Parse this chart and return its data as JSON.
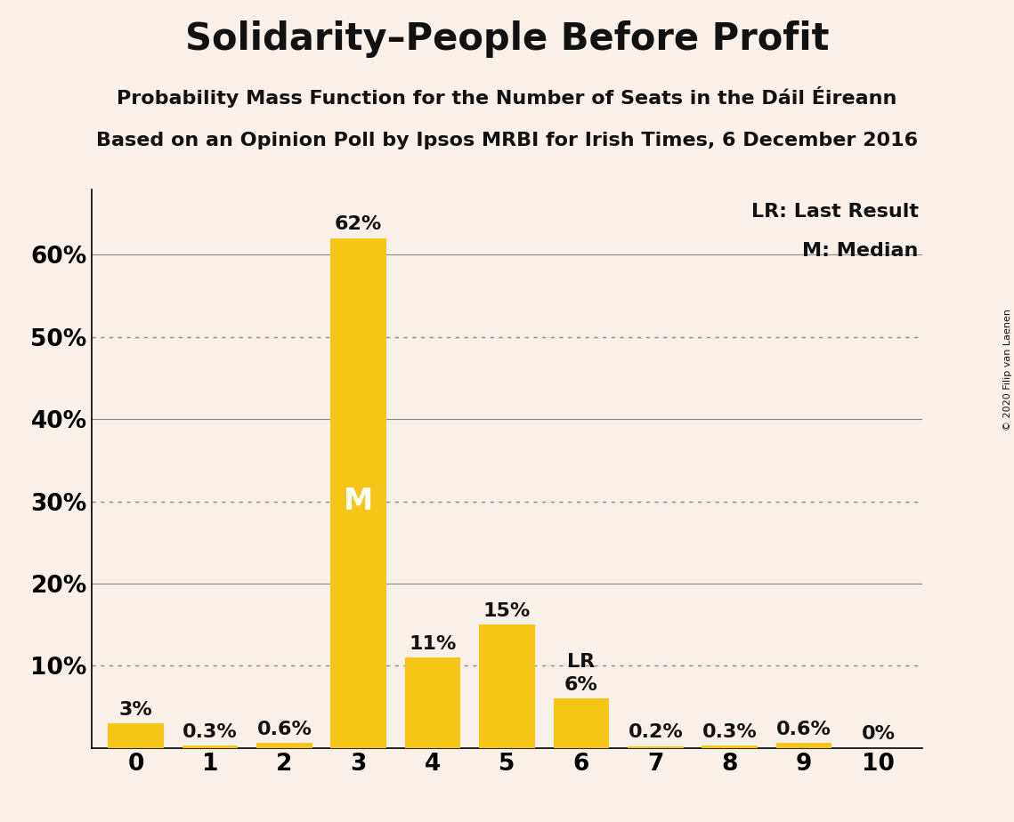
{
  "title": "Solidarity–People Before Profit",
  "subtitle1": "Probability Mass Function for the Number of Seats in the Dáil Éireann",
  "subtitle2": "Based on an Opinion Poll by Ipsos MRBI for Irish Times, 6 December 2016",
  "copyright": "© 2020 Filip van Laenen",
  "categories": [
    0,
    1,
    2,
    3,
    4,
    5,
    6,
    7,
    8,
    9,
    10
  ],
  "values": [
    3.0,
    0.3,
    0.6,
    62.0,
    11.0,
    15.0,
    6.0,
    0.2,
    0.3,
    0.6,
    0.0
  ],
  "labels": [
    "3%",
    "0.3%",
    "0.6%",
    "62%",
    "11%",
    "15%",
    "6%",
    "0.2%",
    "0.3%",
    "0.6%",
    "0%"
  ],
  "bar_color": "#F5C518",
  "background_color": "#FAF0EA",
  "text_color": "#111111",
  "median_bar": 3,
  "last_result_bar": 6,
  "ylim": [
    0,
    68
  ],
  "yticks": [
    0,
    10,
    20,
    30,
    40,
    50,
    60
  ],
  "ytick_labels": [
    "",
    "10%",
    "20%",
    "30%",
    "40%",
    "50%",
    "60%"
  ],
  "dotted_gridlines": [
    10,
    30,
    50
  ],
  "solid_gridlines": [
    20,
    40,
    60
  ],
  "legend_lr": "LR: Last Result",
  "legend_m": "M: Median",
  "title_fontsize": 30,
  "subtitle_fontsize": 16,
  "bar_label_fontsize": 16,
  "median_label_fontsize": 24,
  "axis_fontsize": 19,
  "copyright_fontsize": 8
}
